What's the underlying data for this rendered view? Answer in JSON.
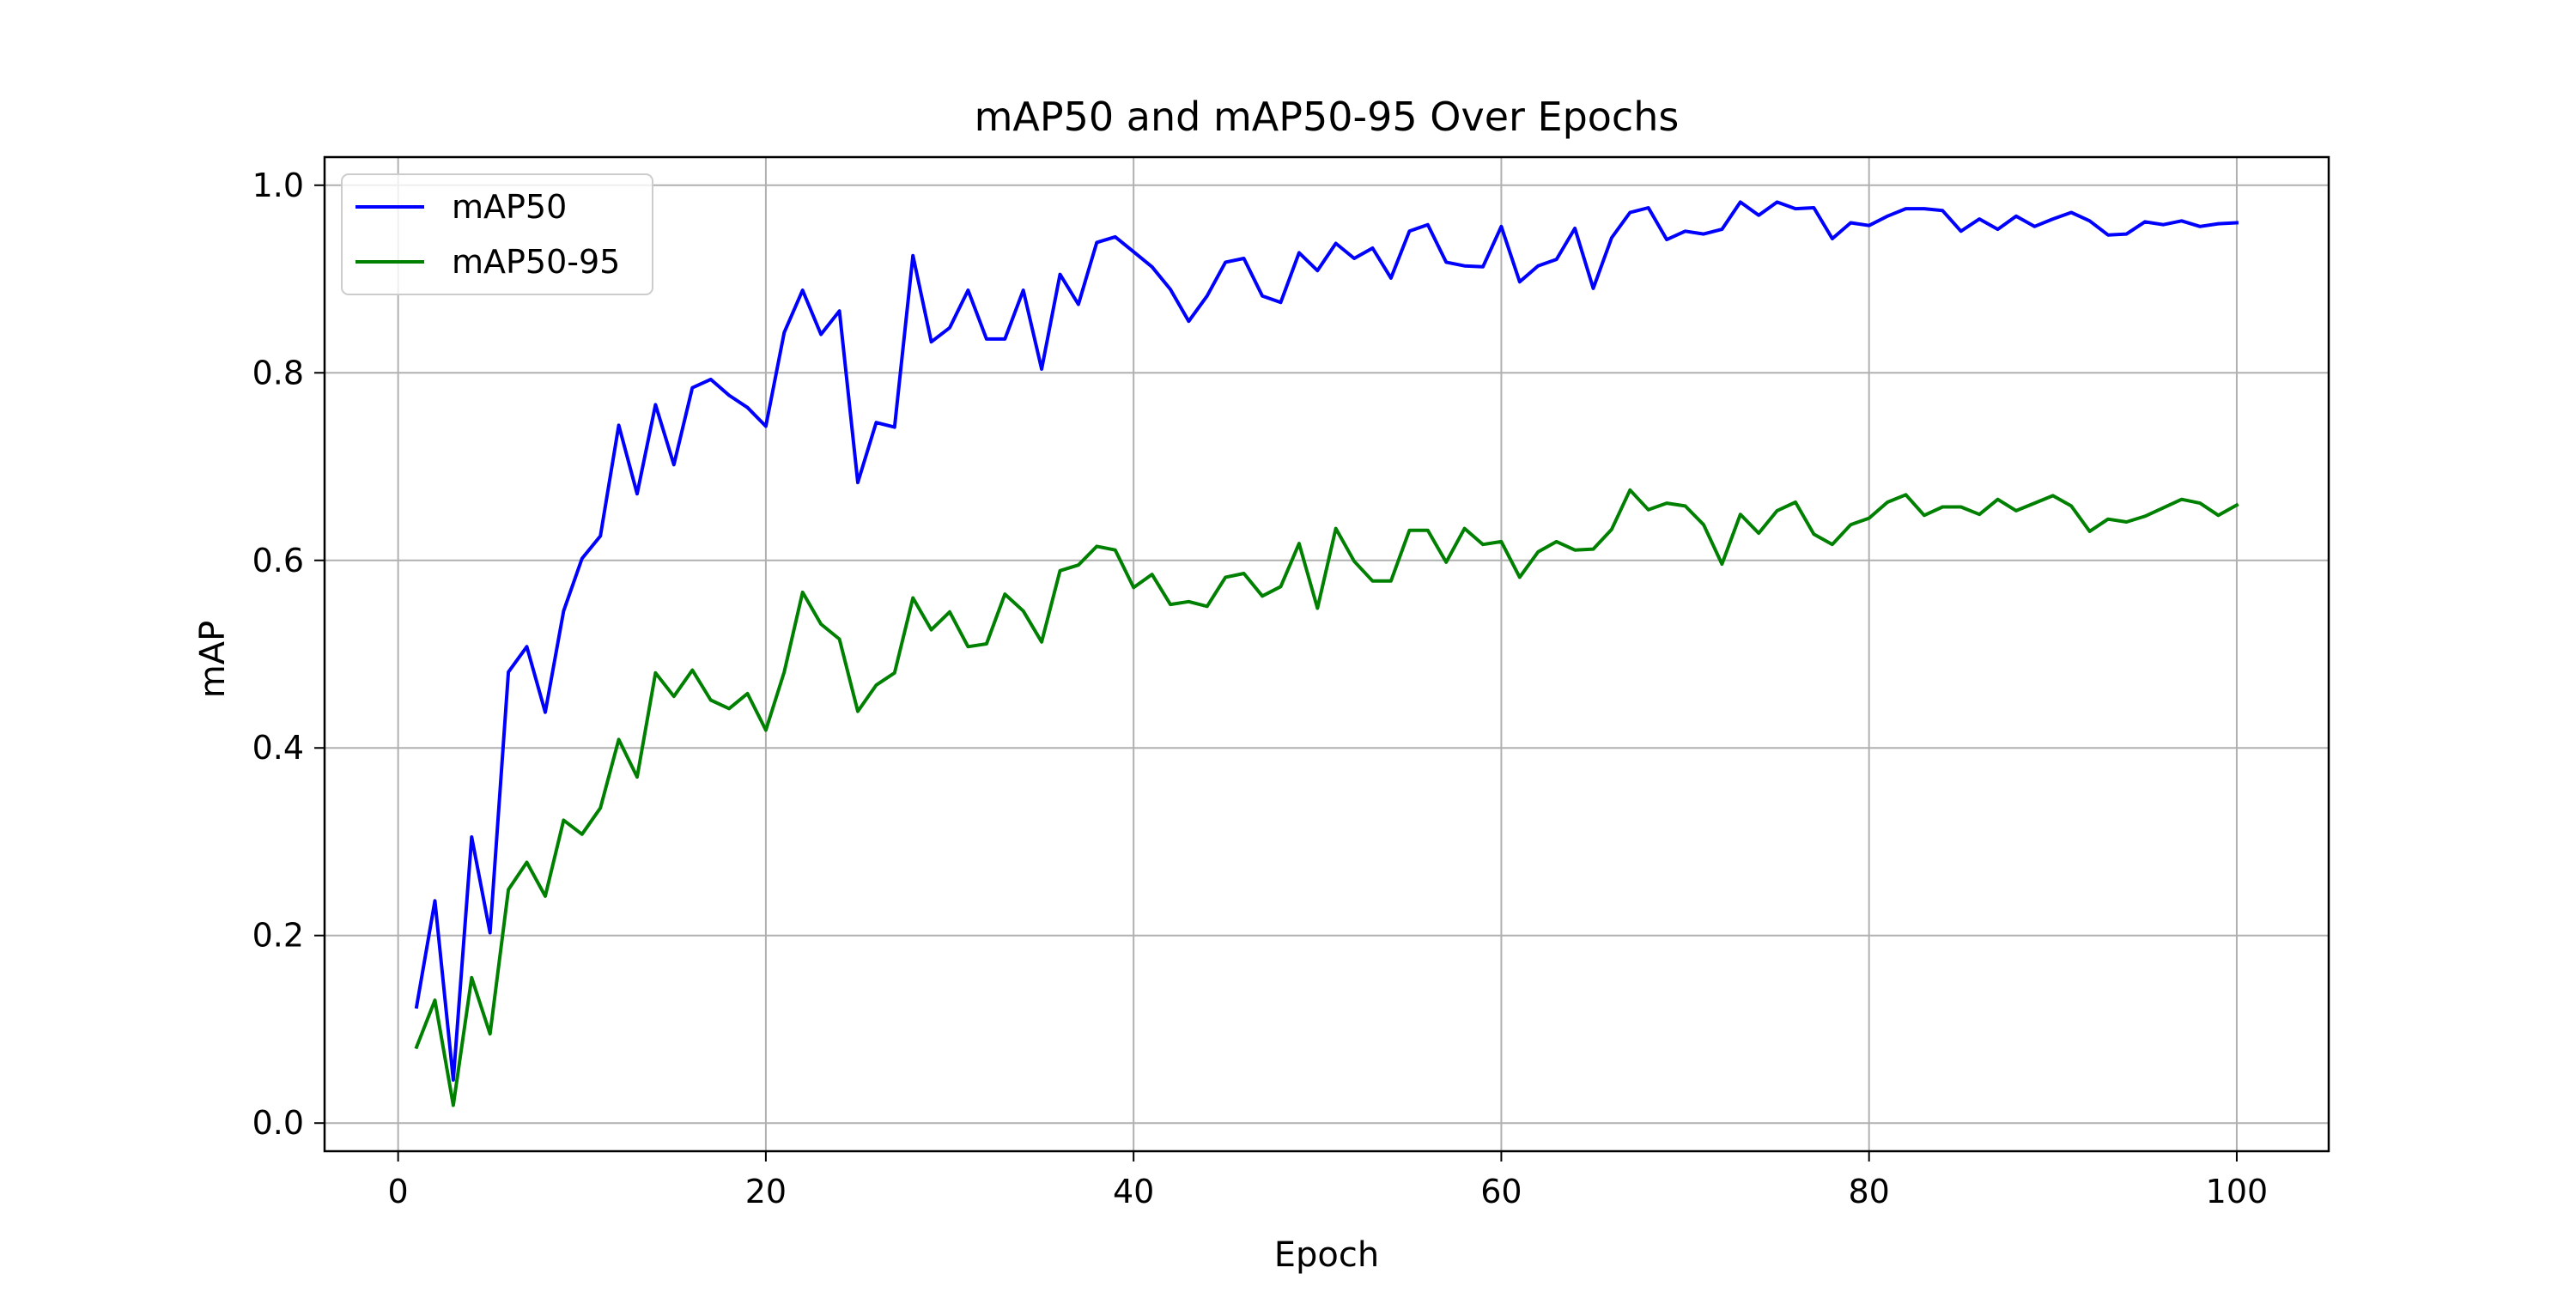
{
  "chart_data": {
    "type": "line",
    "title": "mAP50 and mAP50-95 Over Epochs",
    "xlabel": "Epoch",
    "ylabel": "mAP",
    "xlim": [
      -4.0,
      105.0
    ],
    "ylim": [
      -0.03,
      1.03
    ],
    "xticks": [
      0,
      20,
      40,
      60,
      80,
      100
    ],
    "yticks": [
      0.0,
      0.2,
      0.4,
      0.6,
      0.8,
      1.0
    ],
    "xtick_labels": [
      "0",
      "20",
      "40",
      "60",
      "80",
      "100"
    ],
    "ytick_labels": [
      "0.0",
      "0.2",
      "0.4",
      "0.6",
      "0.8",
      "1.0"
    ],
    "grid": true,
    "legend_position": "top-left",
    "x": [
      1,
      2,
      3,
      4,
      5,
      6,
      7,
      8,
      9,
      10,
      11,
      12,
      13,
      14,
      15,
      16,
      17,
      18,
      19,
      20,
      21,
      22,
      23,
      24,
      25,
      26,
      27,
      28,
      29,
      30,
      31,
      32,
      33,
      34,
      35,
      36,
      37,
      38,
      39,
      40,
      41,
      42,
      43,
      44,
      45,
      46,
      47,
      48,
      49,
      50,
      51,
      52,
      53,
      54,
      55,
      56,
      57,
      58,
      59,
      60,
      61,
      62,
      63,
      64,
      65,
      66,
      67,
      68,
      69,
      70,
      71,
      72,
      73,
      74,
      75,
      76,
      77,
      78,
      79,
      80,
      81,
      82,
      83,
      84,
      85,
      86,
      87,
      88,
      89,
      90,
      91,
      92,
      93,
      94,
      95,
      96,
      97,
      98,
      99,
      100
    ],
    "series": [
      {
        "name": "mAP50",
        "color": "#0000ff",
        "values": [
          0.124,
          0.237,
          0.046,
          0.305,
          0.203,
          0.481,
          0.508,
          0.438,
          0.546,
          0.602,
          0.626,
          0.744,
          0.671,
          0.766,
          0.702,
          0.784,
          0.793,
          0.776,
          0.763,
          0.743,
          0.843,
          0.888,
          0.841,
          0.866,
          0.683,
          0.747,
          0.742,
          0.925,
          0.833,
          0.848,
          0.888,
          0.836,
          0.836,
          0.888,
          0.804,
          0.905,
          0.873,
          0.939,
          0.945,
          0.929,
          0.913,
          0.889,
          0.855,
          0.882,
          0.918,
          0.922,
          0.882,
          0.875,
          0.928,
          0.909,
          0.938,
          0.922,
          0.933,
          0.901,
          0.951,
          0.958,
          0.918,
          0.914,
          0.913,
          0.956,
          0.897,
          0.914,
          0.921,
          0.954,
          0.89,
          0.944,
          0.971,
          0.976,
          0.942,
          0.951,
          0.948,
          0.953,
          0.982,
          0.968,
          0.982,
          0.975,
          0.976,
          0.943,
          0.96,
          0.957,
          0.967,
          0.975,
          0.975,
          0.973,
          0.951,
          0.964,
          0.953,
          0.967,
          0.956,
          0.964,
          0.971,
          0.962,
          0.947,
          0.948,
          0.961,
          0.958,
          0.962,
          0.956,
          0.959,
          0.96
        ]
      },
      {
        "name": "mAP50-95",
        "color": "#008000",
        "values": [
          0.081,
          0.131,
          0.019,
          0.155,
          0.095,
          0.249,
          0.278,
          0.242,
          0.323,
          0.308,
          0.336,
          0.409,
          0.369,
          0.48,
          0.455,
          0.483,
          0.451,
          0.442,
          0.458,
          0.419,
          0.481,
          0.566,
          0.532,
          0.516,
          0.439,
          0.467,
          0.48,
          0.56,
          0.526,
          0.545,
          0.508,
          0.511,
          0.564,
          0.546,
          0.513,
          0.589,
          0.595,
          0.615,
          0.611,
          0.571,
          0.585,
          0.553,
          0.556,
          0.551,
          0.582,
          0.586,
          0.562,
          0.572,
          0.618,
          0.549,
          0.634,
          0.599,
          0.578,
          0.578,
          0.632,
          0.632,
          0.598,
          0.634,
          0.617,
          0.62,
          0.582,
          0.609,
          0.62,
          0.611,
          0.612,
          0.633,
          0.675,
          0.654,
          0.661,
          0.658,
          0.638,
          0.596,
          0.649,
          0.629,
          0.653,
          0.662,
          0.628,
          0.617,
          0.638,
          0.645,
          0.662,
          0.67,
          0.648,
          0.657,
          0.657,
          0.649,
          0.665,
          0.653,
          0.661,
          0.669,
          0.658,
          0.631,
          0.644,
          0.641,
          0.647,
          0.656,
          0.665,
          0.661,
          0.648,
          0.659
        ]
      }
    ]
  }
}
